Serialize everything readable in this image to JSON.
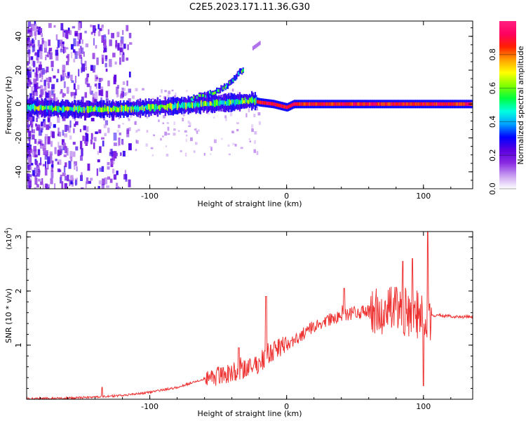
{
  "title": "C2E5.2023.171.11.36.G30",
  "chart_data": [
    {
      "type": "heatmap",
      "name": "spectrogram",
      "xlabel": "Height of straight line (km)",
      "ylabel": "Frequency (Hz)",
      "xlim": [
        -190,
        136
      ],
      "ylim": [
        -50,
        49
      ],
      "xticks": [
        -100,
        0,
        100
      ],
      "yticks": [
        -40,
        -20,
        0,
        20,
        40
      ],
      "xtick_labels": [
        "-100",
        "0",
        "100"
      ],
      "ytick_labels": [
        "-40",
        "-20",
        "0",
        "20",
        "40"
      ],
      "colorbar": {
        "label": "Normalized spectral amplitude",
        "range": [
          0,
          1
        ],
        "ticks": [
          0.0,
          0.2,
          0.4,
          0.6,
          0.8
        ],
        "tick_labels": [
          "0.0",
          "0.2",
          "0.4",
          "0.6",
          "0.8"
        ],
        "colormap": [
          "#ffffff",
          "#c9a0f0",
          "#8a2be2",
          "#5a00e0",
          "#0000ff",
          "#00a0ff",
          "#00ffe0",
          "#00ff40",
          "#80ff00",
          "#ffff00",
          "#ffa000",
          "#ff2000",
          "#ff0060",
          "#ff2080"
        ]
      },
      "trace": {
        "description_points": [
          [
            -185,
            -2
          ],
          [
            -160,
            -3
          ],
          [
            -140,
            -3
          ],
          [
            -120,
            -3
          ],
          [
            -100,
            -2
          ],
          [
            -80,
            -1
          ],
          [
            -60,
            0
          ],
          [
            -40,
            1
          ],
          [
            -25,
            2
          ],
          [
            -20,
            1
          ],
          [
            -10,
            0
          ],
          [
            0,
            -2
          ],
          [
            5,
            0
          ],
          [
            50,
            0
          ],
          [
            100,
            0
          ],
          [
            136,
            0
          ]
        ],
        "branch": [
          [
            -70,
            3
          ],
          [
            -55,
            6
          ],
          [
            -45,
            10
          ],
          [
            -38,
            16
          ],
          [
            -32,
            21
          ]
        ],
        "fragment": [
          [
            -25,
            33
          ],
          [
            -20,
            36
          ]
        ]
      }
    },
    {
      "type": "line",
      "name": "snr",
      "xlabel": "Height of straight line (km)",
      "ylabel": "SNR (10 * v/v)",
      "yscale_label": "(x10",
      "yscale_exp": "4",
      "yscale_close": ")",
      "xlim": [
        -190,
        136
      ],
      "ylim": [
        0,
        3.1
      ],
      "xticks": [
        -100,
        0,
        100
      ],
      "yticks": [
        1,
        2,
        3
      ],
      "xtick_labels": [
        "-100",
        "0",
        "100"
      ],
      "ytick_labels": [
        "1",
        "2",
        "3"
      ],
      "color": "#ee3333",
      "series_envelope": {
        "x": [
          -190,
          -160,
          -140,
          -120,
          -100,
          -80,
          -60,
          -40,
          -30,
          -20,
          -10,
          0,
          10,
          20,
          30,
          40,
          50,
          60,
          70,
          80,
          90,
          100,
          104,
          106,
          110,
          120,
          136
        ],
        "y": [
          0.01,
          0.02,
          0.04,
          0.07,
          0.13,
          0.22,
          0.38,
          0.5,
          0.55,
          0.65,
          0.9,
          1.0,
          1.15,
          1.35,
          1.45,
          1.55,
          1.6,
          1.62,
          1.6,
          1.65,
          1.6,
          1.55,
          1.5,
          1.55,
          1.55,
          1.53,
          1.52
        ]
      },
      "peaks": [
        {
          "x": -135,
          "y": 0.22
        },
        {
          "x": -35,
          "y": 0.95
        },
        {
          "x": -15,
          "y": 1.9
        },
        {
          "x": 42,
          "y": 2.05
        },
        {
          "x": 85,
          "y": 2.55
        },
        {
          "x": 92,
          "y": 2.6
        },
        {
          "x": 103,
          "y": 3.1
        },
        {
          "x": 100,
          "y": 0.25
        }
      ]
    }
  ]
}
